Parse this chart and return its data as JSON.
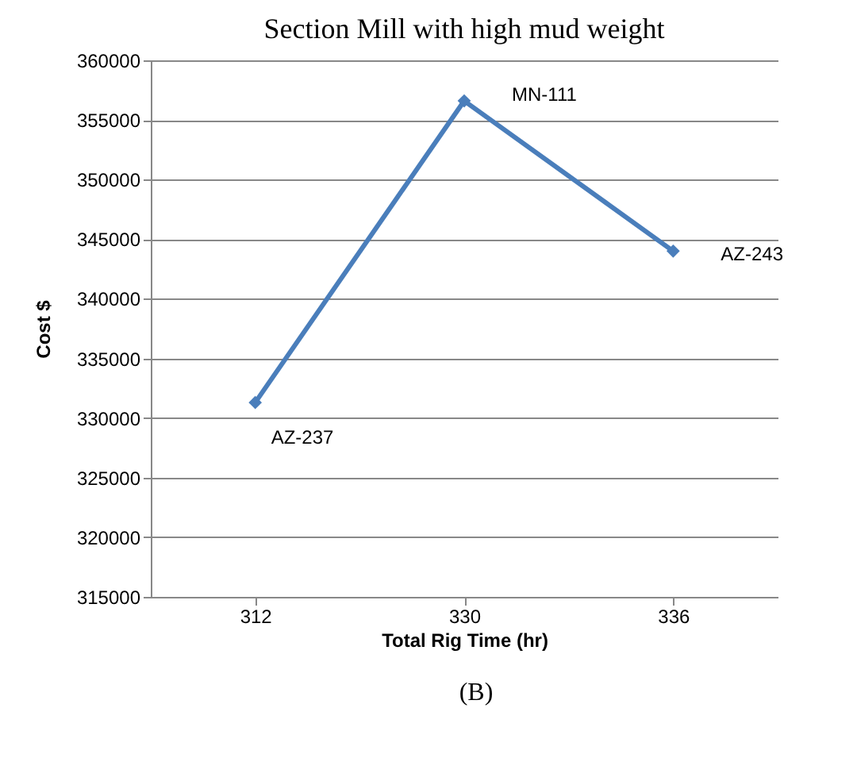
{
  "chart_data": {
    "type": "line",
    "title": "Section Mill with high mud weight",
    "xlabel": "Total Rig Time (hr)",
    "ylabel": "Cost $",
    "categories": [
      "312",
      "330",
      "336"
    ],
    "series": [
      {
        "color": "#4a7ebb",
        "values": [
          331300,
          356600,
          344000
        ]
      }
    ],
    "ylim": [
      315000,
      360000
    ],
    "yticks": [
      315000,
      320000,
      325000,
      330000,
      335000,
      340000,
      345000,
      350000,
      355000,
      360000
    ],
    "grid": "y",
    "marker": "diamond",
    "line_style": "solid",
    "annotations": [
      {
        "text": "AZ-237",
        "x": "312",
        "y": 331300
      },
      {
        "text": "MN-111",
        "x": "330",
        "y": 356600
      },
      {
        "text": "AZ-243",
        "x": "336",
        "y": 344000
      },
      "(B)"
    ]
  }
}
